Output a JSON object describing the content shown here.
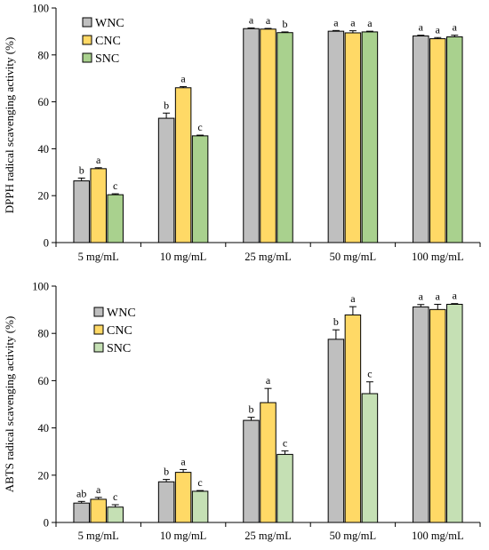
{
  "chart_data": [
    {
      "type": "bar",
      "ylabel": "DPPH radical scavenging activity (%)",
      "ylim": [
        0,
        100
      ],
      "yticks": [
        0,
        20,
        40,
        60,
        80,
        100
      ],
      "grid": false,
      "legend_placement": "top-left",
      "categories": [
        "5 mg/mL",
        "10 mg/mL",
        "25 mg/mL",
        "50 mg/mL",
        "100 mg/mL"
      ],
      "series": [
        {
          "name": "WNC",
          "color": "#bfbfbf",
          "values": [
            26.3,
            53.0,
            91.2,
            90.1,
            88.1
          ],
          "errors": [
            1.2,
            2.2,
            0.3,
            0.3,
            0.3
          ],
          "labels": [
            "b",
            "b",
            "a",
            "a",
            "a"
          ]
        },
        {
          "name": "CNC",
          "color": "#ffd966",
          "values": [
            31.5,
            66.0,
            91.0,
            89.4,
            86.9
          ],
          "errors": [
            0.4,
            0.5,
            0.3,
            0.9,
            0.5
          ],
          "labels": [
            "a",
            "a",
            "a",
            "a",
            "a"
          ]
        },
        {
          "name": "SNC",
          "color": "#a9d18e",
          "values": [
            20.4,
            45.5,
            89.5,
            89.8,
            87.7
          ],
          "errors": [
            0.4,
            0.3,
            0.3,
            0.3,
            0.7
          ],
          "labels": [
            "c",
            "c",
            "b",
            "a",
            "a"
          ]
        }
      ]
    },
    {
      "type": "bar",
      "ylabel": "ABTS radical scavenging activity (%)",
      "ylim": [
        0,
        100
      ],
      "yticks": [
        0,
        20,
        40,
        60,
        80,
        100
      ],
      "grid": false,
      "legend_placement": "top-left",
      "categories": [
        "5 mg/mL",
        "10 mg/mL",
        "25 mg/mL",
        "50 mg/mL",
        "100 mg/mL"
      ],
      "series": [
        {
          "name": "WNC",
          "color": "#bfbfbf",
          "values": [
            8.2,
            17.2,
            43.2,
            77.5,
            91.2
          ],
          "errors": [
            0.7,
            1.0,
            1.3,
            4.0,
            1.0
          ],
          "labels": [
            "ab",
            "b",
            "b",
            "b",
            "a"
          ]
        },
        {
          "name": "CNC",
          "color": "#ffd966",
          "values": [
            9.8,
            21.2,
            50.7,
            87.8,
            90.1
          ],
          "errors": [
            0.8,
            1.2,
            6.0,
            3.5,
            2.2
          ],
          "labels": [
            "a",
            "a",
            "a",
            "a",
            "a"
          ]
        },
        {
          "name": "SNC",
          "color": "#c5e0b4",
          "values": [
            6.5,
            13.2,
            28.8,
            54.5,
            92.3
          ],
          "errors": [
            1.0,
            0.3,
            1.5,
            5.0,
            0.3
          ],
          "labels": [
            "c",
            "c",
            "c",
            "c",
            "a"
          ]
        }
      ]
    }
  ]
}
